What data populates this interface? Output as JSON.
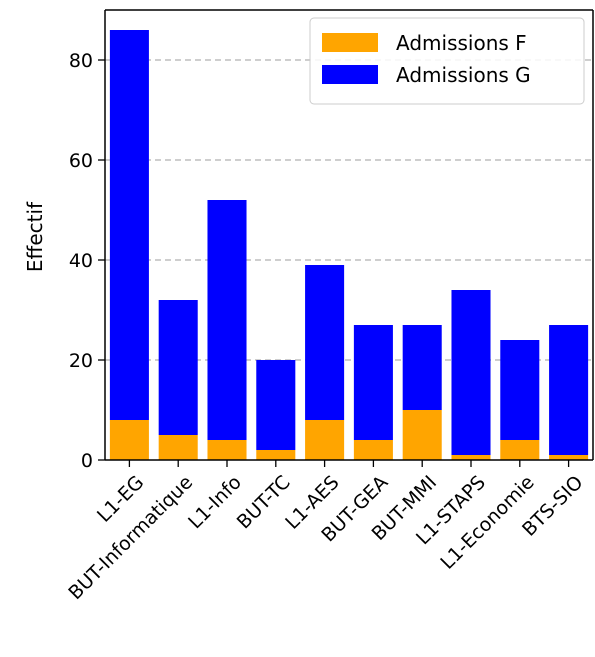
{
  "chart_data": {
    "type": "bar",
    "stacked": true,
    "categories": [
      "L1-EG",
      "BUT-Informatique",
      "L1-Info",
      "BUT-TC",
      "L1-AES",
      "BUT-GEA",
      "BUT-MMI",
      "L1-STAPS",
      "L1-Economie",
      "BTS-SIO"
    ],
    "series": [
      {
        "name": "Admissions F",
        "color": "#ffa500",
        "values": [
          8,
          5,
          4,
          2,
          8,
          4,
          10,
          1,
          4,
          1
        ]
      },
      {
        "name": "Admissions G",
        "color": "#0000ff",
        "values": [
          78,
          27,
          48,
          18,
          31,
          23,
          17,
          33,
          20,
          26
        ]
      }
    ],
    "xlabel": "",
    "ylabel": "Effectif",
    "ylim": [
      0,
      90
    ],
    "yticks": [
      0,
      20,
      40,
      60,
      80
    ],
    "grid": "y-dashed",
    "legend_position": "top-right"
  }
}
